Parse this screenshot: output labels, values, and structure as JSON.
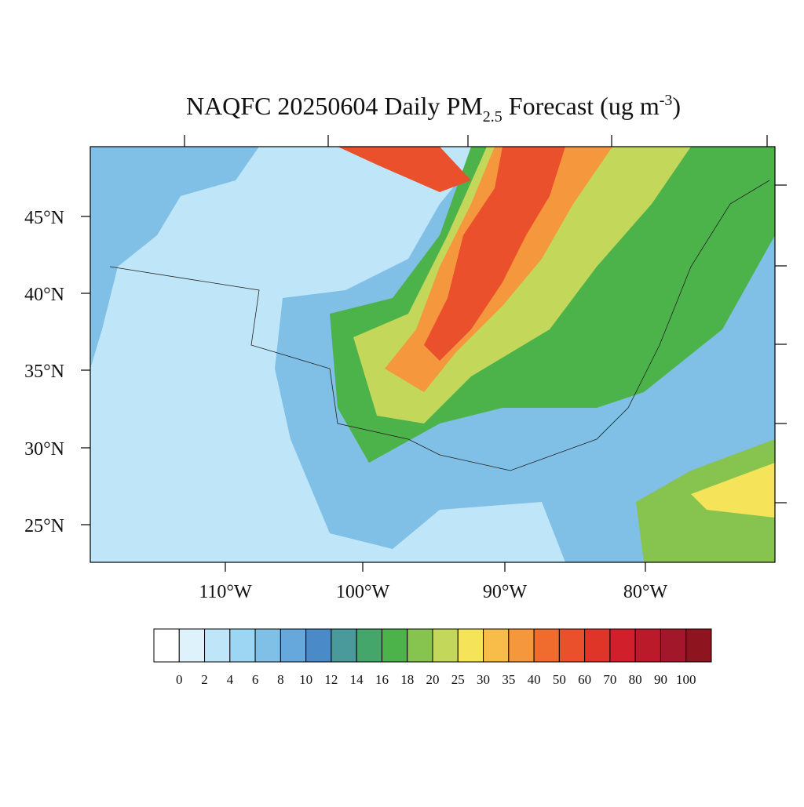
{
  "title": {
    "main": "NAQFC 20250604 Daily PM",
    "subscript": "2.5",
    "unit_start": " Forecast (ug m",
    "superscript": "-3",
    "unit_end": ")"
  },
  "map": {
    "lat_labels": [
      "45°N",
      "40°N",
      "35°N",
      "30°N",
      "25°N"
    ],
    "lon_labels": [
      "110°W",
      "100°W",
      "90°W",
      "80°W"
    ]
  },
  "colorbar": {
    "labels": [
      "0",
      "2",
      "4",
      "6",
      "8",
      "10",
      "12",
      "14",
      "16",
      "18",
      "20",
      "25",
      "30",
      "35",
      "40",
      "50",
      "60",
      "70",
      "80",
      "90",
      "100"
    ],
    "colors": [
      "#ffffff",
      "#def2fb",
      "#bfe6f8",
      "#9dd6f3",
      "#80bfe6",
      "#66a8db",
      "#4a8ac8",
      "#4a9a9c",
      "#45a66c",
      "#4cb24a",
      "#86c44f",
      "#c3d75b",
      "#f5e35a",
      "#f8bd48",
      "#f5973d",
      "#f06c2e",
      "#e9502b",
      "#de3528",
      "#d11f2b",
      "#ba1a2a",
      "#a3172a",
      "#8e1520"
    ]
  }
}
